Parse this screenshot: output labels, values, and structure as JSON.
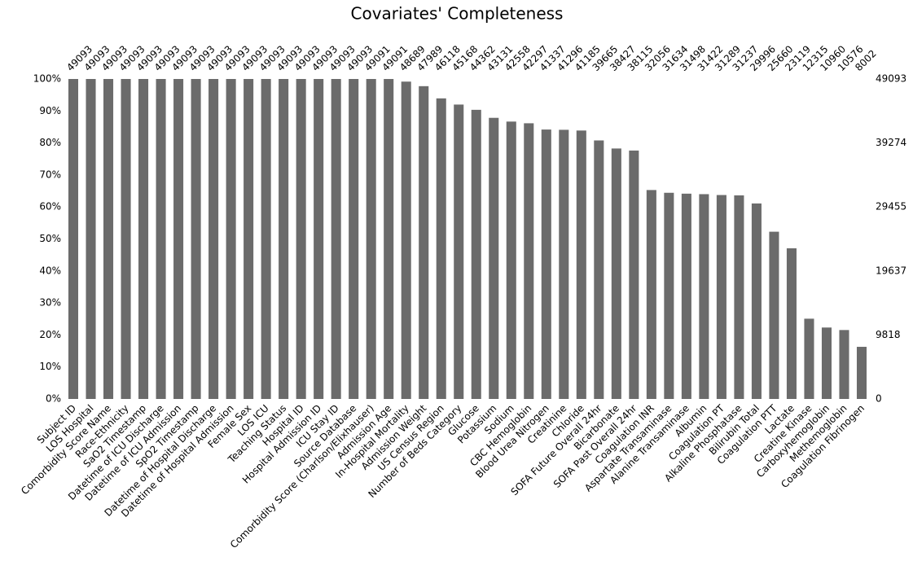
{
  "chart_data": {
    "type": "bar",
    "title": "Covariates' Completeness",
    "categories": [
      "Subject ID",
      "LOS Hospital",
      "Comorbidity Score Name",
      "Race-Ethnicity",
      "SaO2 Timestamp",
      "Datetime of ICU Discharge",
      "Datetime of ICU Admission",
      "SpO2 Timestamp",
      "Datetime of Hospital Discharge",
      "Datetime of Hospital Admission",
      "Female Sex",
      "LOS ICU",
      "Teaching Status",
      "Hospital ID",
      "Hospital Admission ID",
      "ICU Stay ID",
      "Source Database",
      "Comorbidity Score (Charlson/Elixhauser)",
      "Admission Age",
      "In-Hospital Mortality",
      "Admission Weight",
      "US Census Region",
      "Number of Beds Category",
      "Glucose",
      "Potassium",
      "Sodium",
      "CBC Hemoglobin",
      "Blood Urea Nitrogen",
      "Creatinine",
      "Chloride",
      "SOFA Future Overall 24hr",
      "Bicarbonate",
      "SOFA Past Overall 24hr",
      "Coagulation INR",
      "Aspartate Transaminase",
      "Alanine Transaminase",
      "Albumin",
      "Coagulation PT",
      "Alkaline Phosphatase",
      "Bilirubin Total",
      "Coagulation PTT",
      "Lactate",
      "Creatine Kinase",
      "Carboxyhemoglobin",
      "Methemoglobin",
      "Coagulation Fibrinogen"
    ],
    "values": [
      49093,
      49093,
      49093,
      49093,
      49093,
      49093,
      49093,
      49093,
      49093,
      49093,
      49093,
      49093,
      49093,
      49093,
      49093,
      49093,
      49093,
      49091,
      49091,
      48689,
      47989,
      46118,
      45168,
      44362,
      43131,
      42558,
      42297,
      41337,
      41296,
      41185,
      39665,
      38427,
      38115,
      32056,
      31634,
      31498,
      31422,
      31289,
      31237,
      29996,
      25660,
      23119,
      12315,
      10960,
      10576,
      8002
    ],
    "color": "#6b6b6b",
    "ylim": [
      0,
      49093
    ],
    "yticks": [
      {
        "value": 0,
        "label": "0%"
      },
      {
        "value": 4909.3,
        "label": "10%"
      },
      {
        "value": 9818.6,
        "label": "20%"
      },
      {
        "value": 14727.9,
        "label": "30%"
      },
      {
        "value": 19637.2,
        "label": "40%"
      },
      {
        "value": 24546.5,
        "label": "50%"
      },
      {
        "value": 29455.8,
        "label": "60%"
      },
      {
        "value": 34365.1,
        "label": "70%"
      },
      {
        "value": 39274.4,
        "label": "80%"
      },
      {
        "value": 44183.7,
        "label": "90%"
      },
      {
        "value": 49093,
        "label": "100%"
      }
    ],
    "y2lim": [
      0,
      49093
    ],
    "y2ticks": [
      0,
      9818,
      19637,
      29455,
      39274,
      49093
    ],
    "grid": false
  }
}
